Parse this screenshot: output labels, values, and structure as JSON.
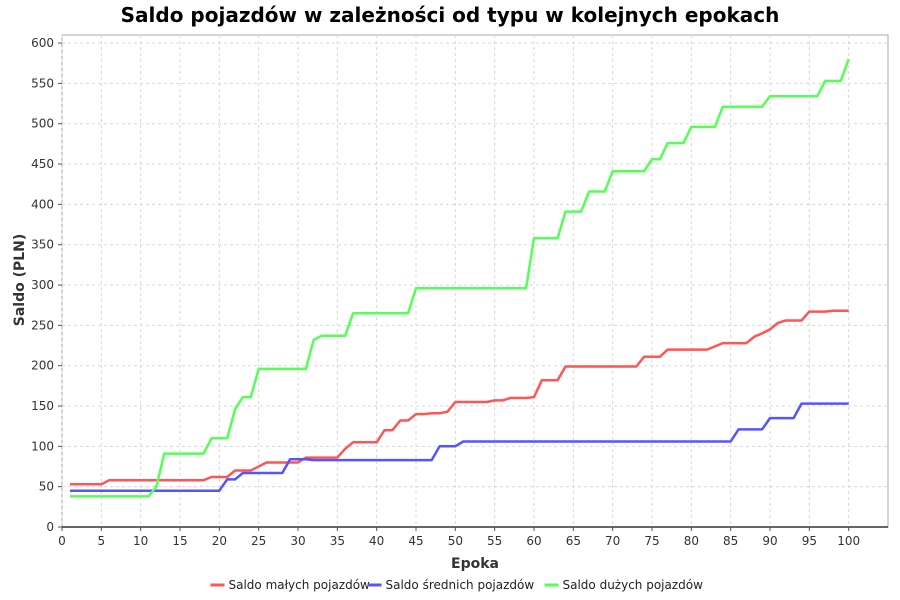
{
  "chart_data": {
    "type": "line",
    "title": "Saldo pojazdów w zależności od typu w kolejnych epokach",
    "xlabel": "Epoka",
    "ylabel": "Saldo (PLN)",
    "xlim": [
      0,
      105
    ],
    "ylim": [
      0,
      610
    ],
    "xticks": [
      0,
      5,
      10,
      15,
      20,
      25,
      30,
      35,
      40,
      45,
      50,
      55,
      60,
      65,
      70,
      75,
      80,
      85,
      90,
      95,
      100
    ],
    "yticks": [
      0,
      50,
      100,
      150,
      200,
      250,
      300,
      350,
      400,
      450,
      500,
      550,
      600
    ],
    "grid": true,
    "legend": "bottom",
    "series": [
      {
        "name": "Saldo małych pojazdów",
        "color": "#ff5555",
        "points": [
          [
            1,
            53
          ],
          [
            5,
            53
          ],
          [
            6,
            58
          ],
          [
            18,
            58
          ],
          [
            19,
            62
          ],
          [
            21,
            62
          ],
          [
            22,
            70
          ],
          [
            24,
            70
          ],
          [
            26,
            80
          ],
          [
            30,
            80
          ],
          [
            31,
            86
          ],
          [
            35,
            86
          ],
          [
            36,
            97
          ],
          [
            37,
            105
          ],
          [
            40,
            105
          ],
          [
            41,
            120
          ],
          [
            42,
            120
          ],
          [
            43,
            132
          ],
          [
            44,
            132
          ],
          [
            45,
            140
          ],
          [
            46,
            140
          ],
          [
            47,
            141
          ],
          [
            48,
            141
          ],
          [
            49,
            143
          ],
          [
            50,
            155
          ],
          [
            54,
            155
          ],
          [
            55,
            157
          ],
          [
            56,
            157
          ],
          [
            57,
            160
          ],
          [
            59,
            160
          ],
          [
            60,
            161
          ],
          [
            61,
            182
          ],
          [
            63,
            182
          ],
          [
            64,
            199
          ],
          [
            73,
            199
          ],
          [
            74,
            211
          ],
          [
            76,
            211
          ],
          [
            77,
            220
          ],
          [
            82,
            220
          ],
          [
            84,
            228
          ],
          [
            87,
            228
          ],
          [
            88,
            236
          ],
          [
            89,
            240
          ],
          [
            90,
            245
          ],
          [
            91,
            253
          ],
          [
            92,
            256
          ],
          [
            94,
            256
          ],
          [
            95,
            267
          ],
          [
            97,
            267
          ],
          [
            98,
            268
          ],
          [
            100,
            268
          ]
        ]
      },
      {
        "name": "Saldo średnich pojazdów",
        "color": "#5555ff",
        "points": [
          [
            1,
            45
          ],
          [
            20,
            45
          ],
          [
            21,
            59
          ],
          [
            22,
            59
          ],
          [
            23,
            67
          ],
          [
            28,
            67
          ],
          [
            29,
            84
          ],
          [
            31,
            84
          ],
          [
            32,
            83
          ],
          [
            47,
            83
          ],
          [
            48,
            100
          ],
          [
            50,
            100
          ],
          [
            51,
            106
          ],
          [
            85,
            106
          ],
          [
            86,
            121
          ],
          [
            89,
            121
          ],
          [
            90,
            135
          ],
          [
            93,
            135
          ],
          [
            94,
            153
          ],
          [
            100,
            153
          ]
        ]
      },
      {
        "name": "Saldo dużych pojazdów",
        "color": "#55ff55",
        "points": [
          [
            1,
            38
          ],
          [
            11,
            38
          ],
          [
            12,
            50
          ],
          [
            13,
            91
          ],
          [
            18,
            91
          ],
          [
            19,
            110
          ],
          [
            21,
            110
          ],
          [
            22,
            146
          ],
          [
            23,
            161
          ],
          [
            24,
            161
          ],
          [
            25,
            196
          ],
          [
            31,
            196
          ],
          [
            32,
            232
          ],
          [
            33,
            237
          ],
          [
            36,
            237
          ],
          [
            37,
            265
          ],
          [
            44,
            265
          ],
          [
            45,
            296
          ],
          [
            59,
            296
          ],
          [
            60,
            358
          ],
          [
            63,
            358
          ],
          [
            64,
            391
          ],
          [
            66,
            391
          ],
          [
            67,
            416
          ],
          [
            69,
            416
          ],
          [
            70,
            441
          ],
          [
            74,
            441
          ],
          [
            75,
            456
          ],
          [
            76,
            456
          ],
          [
            77,
            476
          ],
          [
            79,
            476
          ],
          [
            80,
            496
          ],
          [
            83,
            496
          ],
          [
            84,
            521
          ],
          [
            89,
            521
          ],
          [
            90,
            534
          ],
          [
            96,
            534
          ],
          [
            97,
            553
          ],
          [
            99,
            553
          ],
          [
            100,
            580
          ]
        ]
      }
    ]
  }
}
